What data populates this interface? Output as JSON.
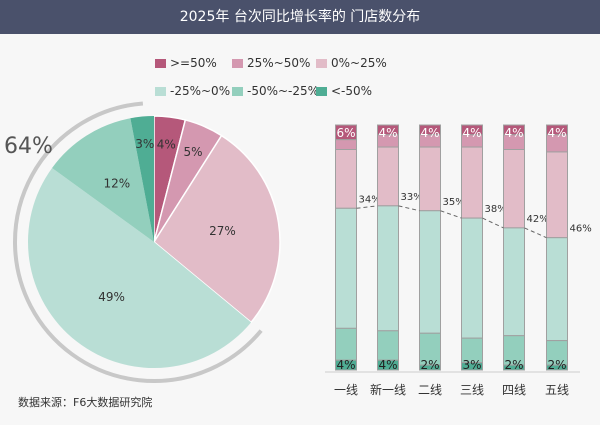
{
  "header": {
    "title": "2025年 台次同比增长率的 门店数分布"
  },
  "legend": [
    {
      "label": ">=50%",
      "color": "#b5587a"
    },
    {
      "label": "25%~50%",
      "color": "#d498b0"
    },
    {
      "label": "0%~25%",
      "color": "#e2bcc8"
    },
    {
      "label": "-25%~0%",
      "color": "#b9ded5"
    },
    {
      "label": "-50%~-25%",
      "color": "#93cfbd"
    },
    {
      "label": "<-50%",
      "color": "#4fad94"
    }
  ],
  "source": "数据来源：F6大数据研究院",
  "chart_data": [
    {
      "type": "pie",
      "slices": [
        {
          "series": ">=50%",
          "value": 4,
          "label": "4%"
        },
        {
          "series": "25%~50%",
          "value": 5,
          "label": "5%"
        },
        {
          "series": "0%~25%",
          "value": 27,
          "label": "27%"
        },
        {
          "series": "-25%~0%",
          "value": 49,
          "label": "49%"
        },
        {
          "series": "-50%~-25%",
          "value": 12,
          "label": "12%"
        },
        {
          "series": "<-50%",
          "value": 3,
          "label": "3%"
        }
      ],
      "annotation": "64%"
    },
    {
      "type": "bar",
      "stacked": true,
      "categories": [
        "一线",
        "新一线",
        "二线",
        "三线",
        "四线",
        "五线"
      ],
      "series": [
        {
          "name": ">=50%",
          "values": [
            6,
            4,
            4,
            4,
            4,
            4
          ]
        },
        {
          "name": "25%~50%",
          "values": [
            4,
            5,
            5,
            5,
            6,
            7
          ]
        },
        {
          "name": "0%~25%",
          "values": [
            24,
            24,
            26,
            29,
            32,
            35
          ]
        },
        {
          "name": "-25%~0%",
          "values": [
            49,
            51,
            50,
            49,
            44,
            42
          ]
        },
        {
          "name": "-50%~-25%",
          "values": [
            13,
            12,
            13,
            10,
            12,
            10
          ]
        },
        {
          "name": "<-50%",
          "values": [
            4,
            4,
            2,
            3,
            2,
            2
          ]
        }
      ],
      "top_labels": [
        "6%",
        "4%",
        "4%",
        "4%",
        "4%",
        "4%"
      ],
      "bottom_labels": [
        "4%",
        "4%",
        "2%",
        "3%",
        "2%",
        "2%"
      ],
      "positive_share_line": {
        "values": [
          34,
          33,
          35,
          38,
          42,
          46
        ],
        "labels": [
          "34%",
          "33%",
          "35%",
          "38%",
          "42%",
          "46%"
        ]
      },
      "ylim": [
        0,
        100
      ]
    }
  ]
}
